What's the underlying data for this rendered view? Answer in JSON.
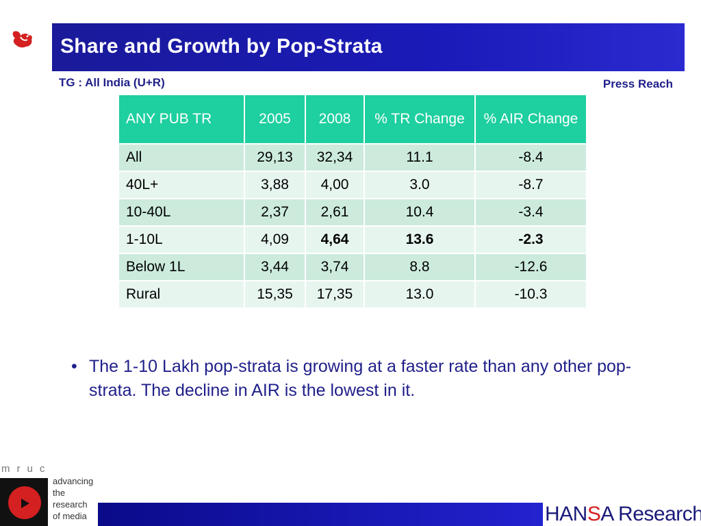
{
  "header": {
    "title": "Share and Growth by Pop-Strata"
  },
  "subheader": {
    "tg": "TG : All India (U+R)",
    "press_reach": "Press Reach"
  },
  "table": {
    "headers": [
      "ANY PUB TR",
      "2005",
      "2008",
      "% TR Change",
      "% AIR Change"
    ],
    "rows": [
      {
        "label": "All",
        "y2005": "29,13",
        "y2008": "32,34",
        "tr_change": "11.1",
        "air_change": "-8.4"
      },
      {
        "label": "40L+",
        "y2005": "3,88",
        "y2008": "4,00",
        "tr_change": "3.0",
        "air_change": "-8.7"
      },
      {
        "label": "10-40L",
        "y2005": "2,37",
        "y2008": "2,61",
        "tr_change": "10.4",
        "air_change": "-3.4"
      },
      {
        "label": "1-10L",
        "y2005": "4,09",
        "y2008": "4,64",
        "tr_change": "13.6",
        "air_change": "-2.3"
      },
      {
        "label": "Below 1L",
        "y2005": "3,44",
        "y2008": "3,74",
        "tr_change": "8.8",
        "air_change": "-12.6"
      },
      {
        "label": "Rural",
        "y2005": "15,35",
        "y2008": "17,35",
        "tr_change": "13.0",
        "air_change": "-10.3"
      }
    ]
  },
  "bullets": [
    "The 1-10 Lakh pop-strata is growing at a faster rate than any other pop-strata. The decline in AIR is the lowest in it."
  ],
  "footer": {
    "mruc_letters": "mruc",
    "mruc_tagline": [
      "advancing",
      "the",
      "research",
      "of media"
    ],
    "hansa_part1": "HAN",
    "hansa_s": "S",
    "hansa_part2": "A Research"
  },
  "colors": {
    "title_bar": "#1a1ab8",
    "table_header": "#1ecf9f",
    "row_dark": "#ccebdd",
    "row_light": "#e7f5ef",
    "text_blue": "#1f1f8a",
    "accent_red": "#d42020"
  },
  "icons": {
    "top_logo": "red-bird-icon",
    "mruc_logo": "mruc-play-icon"
  }
}
